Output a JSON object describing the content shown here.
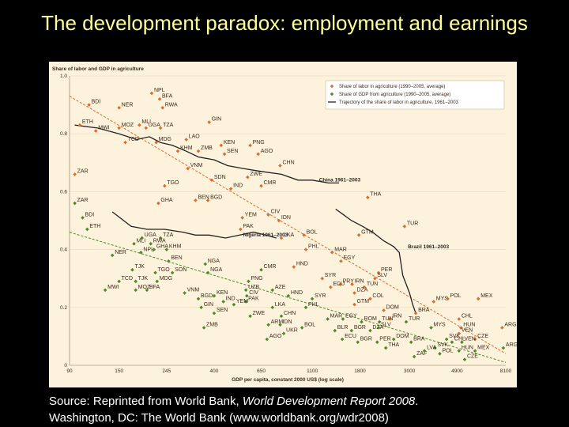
{
  "slide": {
    "title": "The development paradox: employment and earnings",
    "source_line1_a": "Source: Reprinted from World Bank, ",
    "source_line1_b": "World Development Report 2008",
    "source_line1_c": ".",
    "source_line2": "Washington, DC: The World Bank (www.worldbank.org/wdr2008)"
  },
  "chart_data": {
    "type": "scatter",
    "ylabel": "Share of labor and GDP in agriculture",
    "xlabel": "GDP per capita, constant 2000 US$ (log scale)",
    "xscale": "log",
    "xlim": [
      90,
      8100
    ],
    "ylim": [
      0,
      1.0
    ],
    "x_ticks": [
      90,
      150,
      245,
      400,
      650,
      1100,
      1800,
      3000,
      4900,
      8100
    ],
    "y_ticks": [
      0,
      0.2,
      0.4,
      0.6,
      0.8,
      1.0
    ],
    "legend_position": "top-right",
    "colors": {
      "labor": "#e06a2a",
      "gdp": "#4a8a2a",
      "labor_trend": "#e06a2a",
      "gdp_trend": "#4a8a2a",
      "trajectory": "#222222",
      "frame": "#fdf2dc"
    },
    "legend": [
      "Share of labor in agriculture (1990–2005, average)",
      "Share of GDP from agriculture (1990–2005, average)",
      "Trajectory of the share of labor in agriculture, 1961–2003"
    ],
    "labor_share": [
      {
        "label": "NPL",
        "x": 210,
        "y": 0.94
      },
      {
        "label": "BFA",
        "x": 228,
        "y": 0.92
      },
      {
        "label": "RWA",
        "x": 235,
        "y": 0.89
      },
      {
        "label": "BDI",
        "x": 110,
        "y": 0.9
      },
      {
        "label": "NER",
        "x": 150,
        "y": 0.89
      },
      {
        "label": "ETH",
        "x": 100,
        "y": 0.83
      },
      {
        "label": "MWI",
        "x": 118,
        "y": 0.81
      },
      {
        "label": "MOZ",
        "x": 150,
        "y": 0.82
      },
      {
        "label": "MLI",
        "x": 185,
        "y": 0.83
      },
      {
        "label": "UGA",
        "x": 198,
        "y": 0.82
      },
      {
        "label": "TZA",
        "x": 230,
        "y": 0.82
      },
      {
        "label": "GIN",
        "x": 380,
        "y": 0.84
      },
      {
        "label": "TCD",
        "x": 160,
        "y": 0.77
      },
      {
        "label": "MDG",
        "x": 220,
        "y": 0.77
      },
      {
        "label": "LAO",
        "x": 300,
        "y": 0.78
      },
      {
        "label": "KHM",
        "x": 275,
        "y": 0.74
      },
      {
        "label": "ZMB",
        "x": 340,
        "y": 0.74
      },
      {
        "label": "KEN",
        "x": 430,
        "y": 0.76
      },
      {
        "label": "SEN",
        "x": 445,
        "y": 0.73
      },
      {
        "label": "PNG",
        "x": 580,
        "y": 0.76
      },
      {
        "label": "AGO",
        "x": 630,
        "y": 0.73
      },
      {
        "label": "VNM",
        "x": 305,
        "y": 0.68
      },
      {
        "label": "CHN",
        "x": 790,
        "y": 0.69
      },
      {
        "label": "SDN",
        "x": 390,
        "y": 0.64
      },
      {
        "label": "ZAR",
        "x": 95,
        "y": 0.66
      },
      {
        "label": "ZWE",
        "x": 565,
        "y": 0.65
      },
      {
        "label": "CMR",
        "x": 650,
        "y": 0.62
      },
      {
        "label": "TGO",
        "x": 240,
        "y": 0.62
      },
      {
        "label": "IND",
        "x": 475,
        "y": 0.61
      },
      {
        "label": "BEN",
        "x": 330,
        "y": 0.57
      },
      {
        "label": "BGD",
        "x": 375,
        "y": 0.57
      },
      {
        "label": "GHA",
        "x": 225,
        "y": 0.56
      },
      {
        "label": "THA",
        "x": 1950,
        "y": 0.58
      },
      {
        "label": "CIV",
        "x": 700,
        "y": 0.52
      },
      {
        "label": "YEM",
        "x": 535,
        "y": 0.51
      },
      {
        "label": "IDN",
        "x": 780,
        "y": 0.5
      },
      {
        "label": "PAK",
        "x": 525,
        "y": 0.47
      },
      {
        "label": "BOL",
        "x": 1010,
        "y": 0.45
      },
      {
        "label": "LKA",
        "x": 800,
        "y": 0.44
      },
      {
        "label": "TUR",
        "x": 2850,
        "y": 0.48
      },
      {
        "label": "GTM",
        "x": 1780,
        "y": 0.45
      },
      {
        "label": "PHL",
        "x": 1030,
        "y": 0.4
      },
      {
        "label": "MAR",
        "x": 1350,
        "y": 0.39
      },
      {
        "label": "EGY",
        "x": 1480,
        "y": 0.36
      },
      {
        "label": "PER",
        "x": 2180,
        "y": 0.32
      },
      {
        "label": "SLV",
        "x": 2100,
        "y": 0.3
      },
      {
        "label": "HND",
        "x": 910,
        "y": 0.34
      },
      {
        "label": "SYR",
        "x": 1220,
        "y": 0.3
      },
      {
        "label": "PRY",
        "x": 1470,
        "y": 0.28
      },
      {
        "label": "IRN",
        "x": 1660,
        "y": 0.28
      },
      {
        "label": "TUN",
        "x": 1880,
        "y": 0.27
      },
      {
        "label": "ECU",
        "x": 1330,
        "y": 0.27
      },
      {
        "label": "DZA",
        "x": 1700,
        "y": 0.25
      },
      {
        "label": "COL",
        "x": 2000,
        "y": 0.23
      },
      {
        "label": "GTM",
        "x": 1700,
        "y": 0.21
      },
      {
        "label": "DOM",
        "x": 2300,
        "y": 0.19
      },
      {
        "label": "BRA",
        "x": 3200,
        "y": 0.18
      },
      {
        "label": "MYS",
        "x": 3850,
        "y": 0.22
      },
      {
        "label": "POL",
        "x": 4450,
        "y": 0.23
      },
      {
        "label": "MEX",
        "x": 6100,
        "y": 0.23
      },
      {
        "label": "CHL",
        "x": 5000,
        "y": 0.16
      },
      {
        "label": "HUN",
        "x": 5100,
        "y": 0.13
      },
      {
        "label": "VEN",
        "x": 5000,
        "y": 0.11
      },
      {
        "label": "CZE",
        "x": 5900,
        "y": 0.09
      },
      {
        "label": "ARG",
        "x": 7800,
        "y": 0.13
      },
      {
        "label": "IRN",
        "x": 2450,
        "y": 0.16
      }
    ],
    "gdp_share": [
      {
        "label": "ZAR",
        "x": 95,
        "y": 0.56
      },
      {
        "label": "BDI",
        "x": 103,
        "y": 0.51
      },
      {
        "label": "ETH",
        "x": 108,
        "y": 0.47
      },
      {
        "label": "UGA",
        "x": 190,
        "y": 0.44
      },
      {
        "label": "TZA",
        "x": 230,
        "y": 0.44
      },
      {
        "label": "RWA",
        "x": 208,
        "y": 0.42
      },
      {
        "label": "MLI",
        "x": 175,
        "y": 0.42
      },
      {
        "label": "GHA",
        "x": 215,
        "y": 0.4
      },
      {
        "label": "KHM",
        "x": 245,
        "y": 0.4
      },
      {
        "label": "NER",
        "x": 140,
        "y": 0.38
      },
      {
        "label": "NPL",
        "x": 188,
        "y": 0.39
      },
      {
        "label": "BEN",
        "x": 250,
        "y": 0.36
      },
      {
        "label": "NGA",
        "x": 365,
        "y": 0.35
      },
      {
        "label": "TJK",
        "x": 172,
        "y": 0.33
      },
      {
        "label": "TGO",
        "x": 218,
        "y": 0.32
      },
      {
        "label": "SON",
        "x": 260,
        "y": 0.32
      },
      {
        "label": "NGA",
        "x": 375,
        "y": 0.32
      },
      {
        "label": "TCD",
        "x": 150,
        "y": 0.29
      },
      {
        "label": "TJK",
        "x": 178,
        "y": 0.29
      },
      {
        "label": "MDG",
        "x": 222,
        "y": 0.29
      },
      {
        "label": "MWI",
        "x": 130,
        "y": 0.26
      },
      {
        "label": "MOZ",
        "x": 178,
        "y": 0.26
      },
      {
        "label": "BFA",
        "x": 200,
        "y": 0.26
      },
      {
        "label": "CMR",
        "x": 650,
        "y": 0.33
      },
      {
        "label": "PNG",
        "x": 570,
        "y": 0.29
      },
      {
        "label": "UZB",
        "x": 555,
        "y": 0.26
      },
      {
        "label": "VNM",
        "x": 295,
        "y": 0.25
      },
      {
        "label": "KEN",
        "x": 400,
        "y": 0.24
      },
      {
        "label": "BGD",
        "x": 340,
        "y": 0.23
      },
      {
        "label": "CIV",
        "x": 560,
        "y": 0.24
      },
      {
        "label": "PAK",
        "x": 555,
        "y": 0.22
      },
      {
        "label": "IND",
        "x": 440,
        "y": 0.22
      },
      {
        "label": "YEM",
        "x": 490,
        "y": 0.21
      },
      {
        "label": "GIN",
        "x": 350,
        "y": 0.2
      },
      {
        "label": "SEN",
        "x": 400,
        "y": 0.18
      },
      {
        "label": "AZE",
        "x": 730,
        "y": 0.26
      },
      {
        "label": "HND",
        "x": 860,
        "y": 0.24
      },
      {
        "label": "SYR",
        "x": 1100,
        "y": 0.23
      },
      {
        "label": "LKA",
        "x": 730,
        "y": 0.2
      },
      {
        "label": "PHL",
        "x": 1030,
        "y": 0.2
      },
      {
        "label": "ZWE",
        "x": 580,
        "y": 0.17
      },
      {
        "label": "CHN",
        "x": 800,
        "y": 0.17
      },
      {
        "label": "ARM",
        "x": 700,
        "y": 0.14
      },
      {
        "label": "IDN",
        "x": 790,
        "y": 0.14
      },
      {
        "label": "BOL",
        "x": 990,
        "y": 0.13
      },
      {
        "label": "UKR",
        "x": 820,
        "y": 0.11
      },
      {
        "label": "ZMB",
        "x": 360,
        "y": 0.13
      },
      {
        "label": "AGO",
        "x": 690,
        "y": 0.09
      },
      {
        "label": "MAR",
        "x": 1290,
        "y": 0.16
      },
      {
        "label": "EGY",
        "x": 1510,
        "y": 0.16
      },
      {
        "label": "BLR",
        "x": 1390,
        "y": 0.12
      },
      {
        "label": "BGR",
        "x": 1650,
        "y": 0.12
      },
      {
        "label": "ECU",
        "x": 1500,
        "y": 0.09
      },
      {
        "label": "ROM",
        "x": 1830,
        "y": 0.15
      },
      {
        "label": "DZA",
        "x": 2000,
        "y": 0.12
      },
      {
        "label": "TUN",
        "x": 2200,
        "y": 0.15
      },
      {
        "label": "SLV",
        "x": 2180,
        "y": 0.13
      },
      {
        "label": "BGR",
        "x": 1760,
        "y": 0.08
      },
      {
        "label": "PER",
        "x": 2150,
        "y": 0.08
      },
      {
        "label": "THA",
        "x": 2350,
        "y": 0.06
      },
      {
        "label": "DOM",
        "x": 2550,
        "y": 0.09
      },
      {
        "label": "TUR",
        "x": 2900,
        "y": 0.15
      },
      {
        "label": "MYS",
        "x": 3750,
        "y": 0.13
      },
      {
        "label": "BRA",
        "x": 3050,
        "y": 0.08
      },
      {
        "label": "ZAF",
        "x": 3150,
        "y": 0.03
      },
      {
        "label": "SVK",
        "x": 3900,
        "y": 0.06
      },
      {
        "label": "POL",
        "x": 4100,
        "y": 0.04
      },
      {
        "label": "LVA",
        "x": 3500,
        "y": 0.05
      },
      {
        "label": "CHL",
        "x": 4650,
        "y": 0.08
      },
      {
        "label": "SVK",
        "x": 4400,
        "y": 0.09
      },
      {
        "label": "HUN",
        "x": 5000,
        "y": 0.05
      },
      {
        "label": "MEX",
        "x": 5900,
        "y": 0.05
      },
      {
        "label": "CZE",
        "x": 5300,
        "y": 0.02
      },
      {
        "label": "VEN",
        "x": 5150,
        "y": 0.08
      },
      {
        "label": "ARG",
        "x": 7900,
        "y": 0.06
      }
    ],
    "trends": {
      "labor": [
        [
          90,
          0.93
        ],
        [
          8100,
          0.04
        ]
      ],
      "gdp": [
        [
          90,
          0.46
        ],
        [
          8100,
          0.01
        ]
      ]
    },
    "trajectories": [
      {
        "name": "China 1961–2003",
        "label_at": [
          1180,
          0.635
        ],
        "points": [
          [
            95,
            0.83
          ],
          [
            120,
            0.82
          ],
          [
            150,
            0.8
          ],
          [
            180,
            0.78
          ],
          [
            205,
            0.79
          ],
          [
            230,
            0.77
          ],
          [
            260,
            0.76
          ],
          [
            300,
            0.74
          ],
          [
            340,
            0.72
          ],
          [
            400,
            0.71
          ],
          [
            460,
            0.69
          ],
          [
            540,
            0.68
          ],
          [
            650,
            0.67
          ],
          [
            800,
            0.66
          ],
          [
            950,
            0.64
          ],
          [
            1100,
            0.64
          ],
          [
            1300,
            0.63
          ],
          [
            1450,
            0.63
          ]
        ]
      },
      {
        "name": "Nigeria 1961–2003",
        "label_at": [
          540,
          0.445
        ],
        "points": [
          [
            140,
            0.53
          ],
          [
            170,
            0.48
          ],
          [
            200,
            0.47
          ],
          [
            240,
            0.47
          ],
          [
            290,
            0.46
          ],
          [
            330,
            0.45
          ],
          [
            380,
            0.45
          ],
          [
            450,
            0.44
          ],
          [
            520,
            0.45
          ],
          [
            600,
            0.46
          ],
          [
            680,
            0.45
          ],
          [
            760,
            0.44
          ]
        ]
      },
      {
        "name": "Brazil 1961–2003",
        "label_at": [
          2950,
          0.405
        ],
        "points": [
          [
            1400,
            0.54
          ],
          [
            1520,
            0.52
          ],
          [
            1650,
            0.5
          ],
          [
            1850,
            0.48
          ],
          [
            2050,
            0.46
          ],
          [
            2300,
            0.43
          ],
          [
            2550,
            0.41
          ],
          [
            2700,
            0.39
          ],
          [
            2750,
            0.35
          ],
          [
            2800,
            0.31
          ],
          [
            2900,
            0.28
          ],
          [
            3000,
            0.25
          ],
          [
            3100,
            0.21
          ],
          [
            3200,
            0.18
          ]
        ]
      }
    ]
  }
}
